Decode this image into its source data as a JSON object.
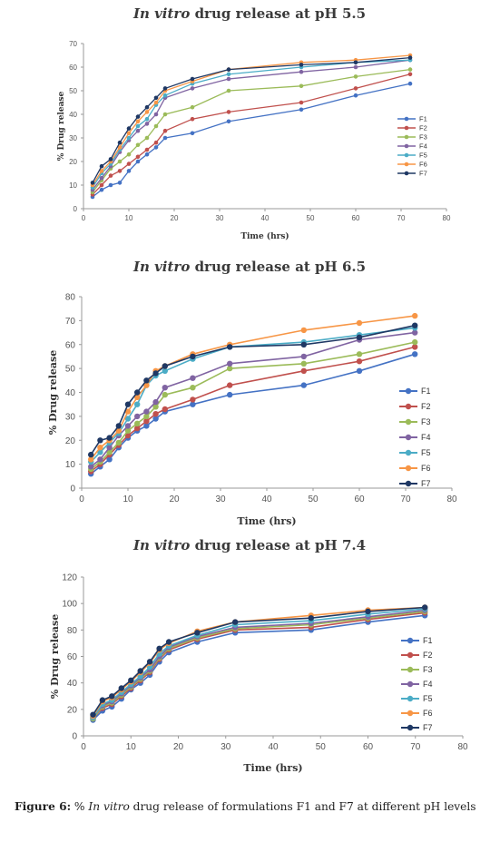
{
  "caption": {
    "label": "Figure 6:",
    "pre": " % ",
    "italic": "In vitro",
    "post": " drug release of formulations F1 and F7 at different pH levels"
  },
  "colors": {
    "F1": "#4472C4",
    "F2": "#C0504D",
    "F3": "#9BBB59",
    "F4": "#8064A2",
    "F5": "#4BACC6",
    "F6": "#F79646",
    "F7": "#1F3864"
  },
  "chart_data": [
    {
      "type": "line",
      "title_italic": "In vitro",
      "title_rest": " drug release at pH 5.5",
      "xlabel": "Time (hrs)",
      "ylabel": "% Drug release",
      "xlim": [
        0,
        80
      ],
      "ylim": [
        0,
        70
      ],
      "xticks": [
        0,
        10,
        20,
        30,
        40,
        50,
        60,
        70,
        80
      ],
      "yticks": [
        0,
        10,
        20,
        30,
        40,
        50,
        60,
        70
      ],
      "grid": false,
      "legend": "right",
      "x": [
        2,
        4,
        6,
        8,
        10,
        12,
        14,
        16,
        18,
        24,
        32,
        48,
        60,
        72
      ],
      "series": [
        {
          "name": "F1",
          "values": [
            5,
            8,
            10,
            11,
            16,
            20,
            23,
            26,
            30,
            32,
            37,
            42,
            48,
            53
          ]
        },
        {
          "name": "F2",
          "values": [
            6,
            10,
            14,
            16,
            19,
            22,
            25,
            28,
            33,
            38,
            41,
            45,
            51,
            57
          ]
        },
        {
          "name": "F3",
          "values": [
            7,
            12,
            17,
            20,
            23,
            27,
            30,
            35,
            40,
            43,
            50,
            52,
            56,
            59
          ]
        },
        {
          "name": "F4",
          "values": [
            8,
            13,
            18,
            24,
            29,
            33,
            36,
            40,
            47,
            51,
            55,
            58,
            60,
            63
          ]
        },
        {
          "name": "F5",
          "values": [
            9,
            15,
            19,
            25,
            30,
            35,
            38,
            44,
            48,
            53,
            57,
            60,
            62,
            63
          ]
        },
        {
          "name": "F6",
          "values": [
            10,
            16,
            20,
            26,
            32,
            37,
            41,
            45,
            50,
            54,
            59,
            62,
            63,
            65
          ]
        },
        {
          "name": "F7",
          "values": [
            11,
            18,
            21,
            28,
            34,
            39,
            43,
            47,
            51,
            55,
            59,
            61,
            62,
            64
          ]
        }
      ]
    },
    {
      "type": "line",
      "title_italic": "In vitro",
      "title_rest": " drug release at pH 6.5",
      "xlabel": "Time (hrs)",
      "ylabel": "% Drug release",
      "xlim": [
        0,
        80
      ],
      "ylim": [
        0,
        80
      ],
      "xticks": [
        0,
        10,
        20,
        30,
        40,
        50,
        60,
        70,
        80
      ],
      "yticks": [
        0,
        10,
        20,
        30,
        40,
        50,
        60,
        70,
        80
      ],
      "grid": false,
      "legend": "right",
      "x": [
        2,
        4,
        6,
        8,
        10,
        12,
        14,
        16,
        18,
        24,
        32,
        48,
        60,
        72
      ],
      "series": [
        {
          "name": "F1",
          "values": [
            6,
            9,
            12,
            17,
            21,
            24,
            26,
            29,
            32,
            35,
            39,
            43,
            49,
            56
          ]
        },
        {
          "name": "F2",
          "values": [
            7,
            10,
            14,
            18,
            22,
            25,
            28,
            31,
            33,
            37,
            43,
            49,
            53,
            59
          ]
        },
        {
          "name": "F3",
          "values": [
            8,
            11,
            15,
            19,
            24,
            27,
            30,
            34,
            39,
            42,
            50,
            52,
            56,
            61
          ]
        },
        {
          "name": "F4",
          "values": [
            9,
            12,
            17,
            22,
            26,
            30,
            32,
            36,
            42,
            46,
            52,
            55,
            62,
            65
          ]
        },
        {
          "name": "F5",
          "values": [
            11,
            15,
            19,
            23,
            29,
            35,
            43,
            47,
            49,
            54,
            59,
            61,
            64,
            67
          ]
        },
        {
          "name": "F6",
          "values": [
            12,
            17,
            20,
            24,
            32,
            38,
            43,
            49,
            51,
            56,
            60,
            66,
            69,
            72
          ]
        },
        {
          "name": "F7",
          "values": [
            14,
            20,
            21,
            26,
            35,
            40,
            45,
            48,
            51,
            55,
            59,
            60,
            63,
            68
          ]
        }
      ]
    },
    {
      "type": "line",
      "title_italic": "In vitro",
      "title_rest": " drug release at pH 7.4",
      "xlabel": "Time (hrs)",
      "ylabel": "% Drug release",
      "xlim": [
        0,
        80
      ],
      "ylim": [
        0,
        120
      ],
      "xticks": [
        0,
        10,
        20,
        30,
        40,
        50,
        60,
        70,
        80
      ],
      "yticks": [
        0,
        20,
        40,
        60,
        80,
        100,
        120
      ],
      "grid": false,
      "legend": "right",
      "x": [
        2,
        4,
        6,
        8,
        10,
        12,
        14,
        16,
        18,
        24,
        32,
        48,
        60,
        72
      ],
      "series": [
        {
          "name": "F1",
          "values": [
            12,
            19,
            22,
            28,
            35,
            40,
            46,
            56,
            63,
            71,
            78,
            80,
            86,
            91
          ]
        },
        {
          "name": "F2",
          "values": [
            13,
            21,
            24,
            30,
            36,
            42,
            48,
            58,
            65,
            73,
            80,
            82,
            88,
            93
          ]
        },
        {
          "name": "F3",
          "values": [
            13,
            22,
            25,
            31,
            37,
            43,
            49,
            59,
            66,
            74,
            81,
            84,
            89,
            94
          ]
        },
        {
          "name": "F4",
          "values": [
            14,
            23,
            26,
            32,
            38,
            44,
            50,
            60,
            67,
            75,
            82,
            85,
            90,
            95
          ]
        },
        {
          "name": "F5",
          "values": [
            14,
            24,
            27,
            33,
            39,
            45,
            52,
            62,
            68,
            76,
            84,
            87,
            92,
            96
          ]
        },
        {
          "name": "F6",
          "values": [
            15,
            26,
            29,
            35,
            41,
            48,
            55,
            65,
            70,
            79,
            86,
            91,
            95,
            97
          ]
        },
        {
          "name": "F7",
          "values": [
            16,
            27,
            30,
            36,
            42,
            49,
            56,
            66,
            71,
            78,
            86,
            89,
            94,
            97
          ]
        }
      ]
    }
  ]
}
